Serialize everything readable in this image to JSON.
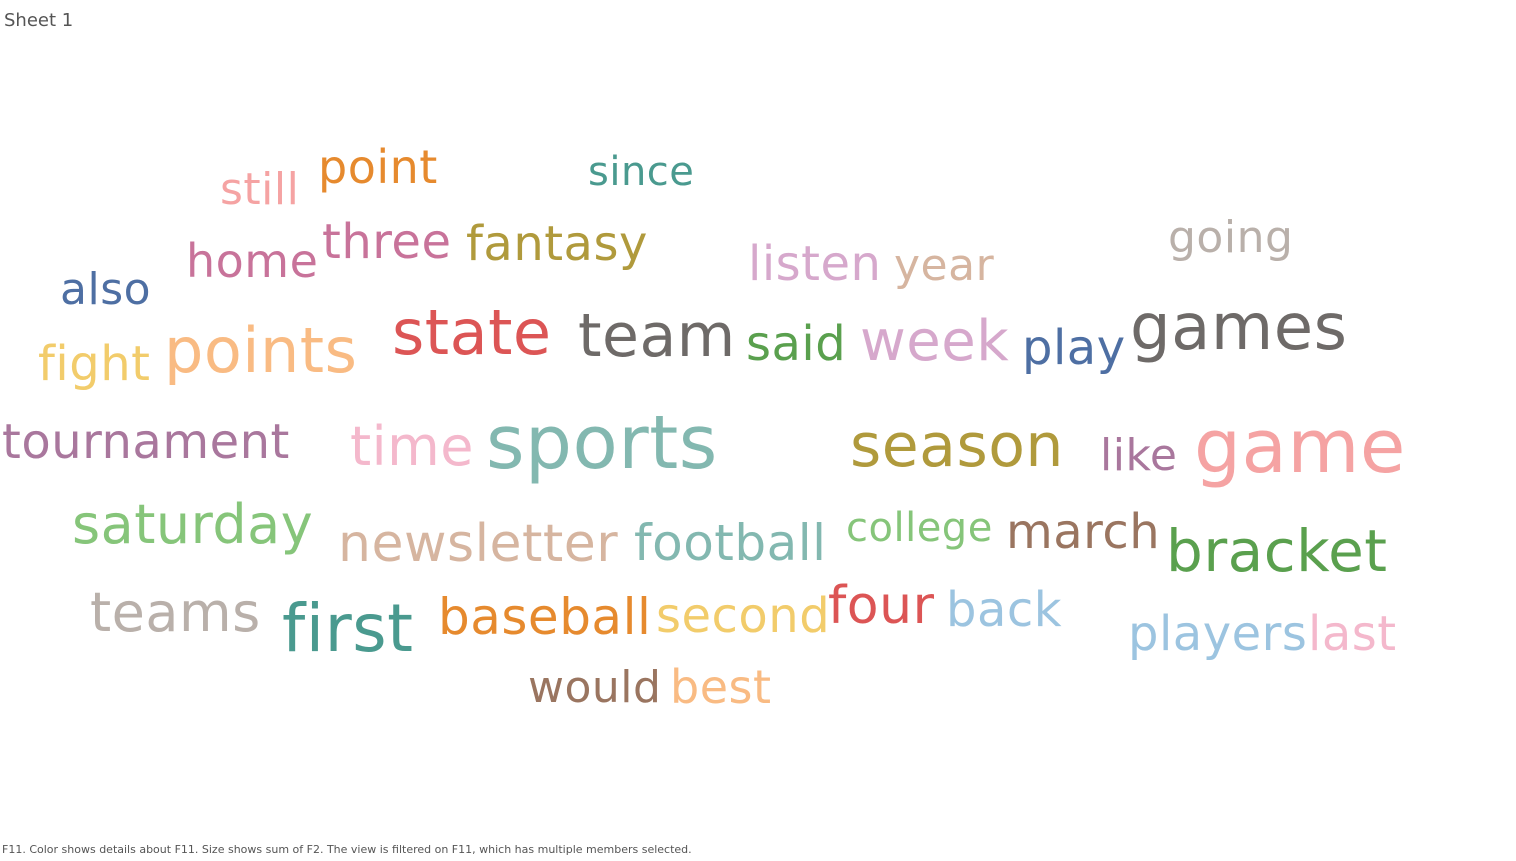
{
  "sheet": {
    "title": "Sheet 1"
  },
  "caption": "F11.  Color shows details about F11.  Size shows sum of F2. The view is filtered on F11, which has multiple members selected.",
  "chart_data": {
    "type": "word-cloud",
    "words": [
      {
        "text": "still",
        "color": "#f5a3a3"
      },
      {
        "text": "point",
        "color": "#e68a2e"
      },
      {
        "text": "since",
        "color": "#4a9a8f"
      },
      {
        "text": "home",
        "color": "#c8739a"
      },
      {
        "text": "three",
        "color": "#c8739a"
      },
      {
        "text": "fantasy",
        "color": "#b09a3c"
      },
      {
        "text": "listen",
        "color": "#d6a8cc"
      },
      {
        "text": "year",
        "color": "#d6b5a0"
      },
      {
        "text": "going",
        "color": "#b9b0aa"
      },
      {
        "text": "also",
        "color": "#4e6fa3"
      },
      {
        "text": "fight",
        "color": "#f2cc6b"
      },
      {
        "text": "points",
        "color": "#f9bb83"
      },
      {
        "text": "state",
        "color": "#dc5555"
      },
      {
        "text": "team",
        "color": "#6e6a68"
      },
      {
        "text": "said",
        "color": "#5aa04e"
      },
      {
        "text": "week",
        "color": "#d6a8cc"
      },
      {
        "text": "play",
        "color": "#4e6fa3"
      },
      {
        "text": "games",
        "color": "#6e6a68"
      },
      {
        "text": "tournament",
        "color": "#a9779d"
      },
      {
        "text": "time",
        "color": "#f4b8cc"
      },
      {
        "text": "sports",
        "color": "#83b8b0"
      },
      {
        "text": "season",
        "color": "#b09a3c"
      },
      {
        "text": "like",
        "color": "#a9779d"
      },
      {
        "text": "game",
        "color": "#f5a3a3"
      },
      {
        "text": "saturday",
        "color": "#86c57a"
      },
      {
        "text": "newsletter",
        "color": "#d6b5a0"
      },
      {
        "text": "football",
        "color": "#83b8b0"
      },
      {
        "text": "college",
        "color": "#86c57a"
      },
      {
        "text": "march",
        "color": "#9a7560"
      },
      {
        "text": "bracket",
        "color": "#5aa04e"
      },
      {
        "text": "teams",
        "color": "#b9b0aa"
      },
      {
        "text": "first",
        "color": "#4a9a8f"
      },
      {
        "text": "baseball",
        "color": "#e68a2e"
      },
      {
        "text": "second",
        "color": "#f2cc6b"
      },
      {
        "text": "four",
        "color": "#dc5555"
      },
      {
        "text": "back",
        "color": "#9cc4e0"
      },
      {
        "text": "players",
        "color": "#9cc4e0"
      },
      {
        "text": "last",
        "color": "#f4b8cc"
      },
      {
        "text": "would",
        "color": "#9a7560"
      },
      {
        "text": "best",
        "color": "#f9bb83"
      }
    ]
  }
}
